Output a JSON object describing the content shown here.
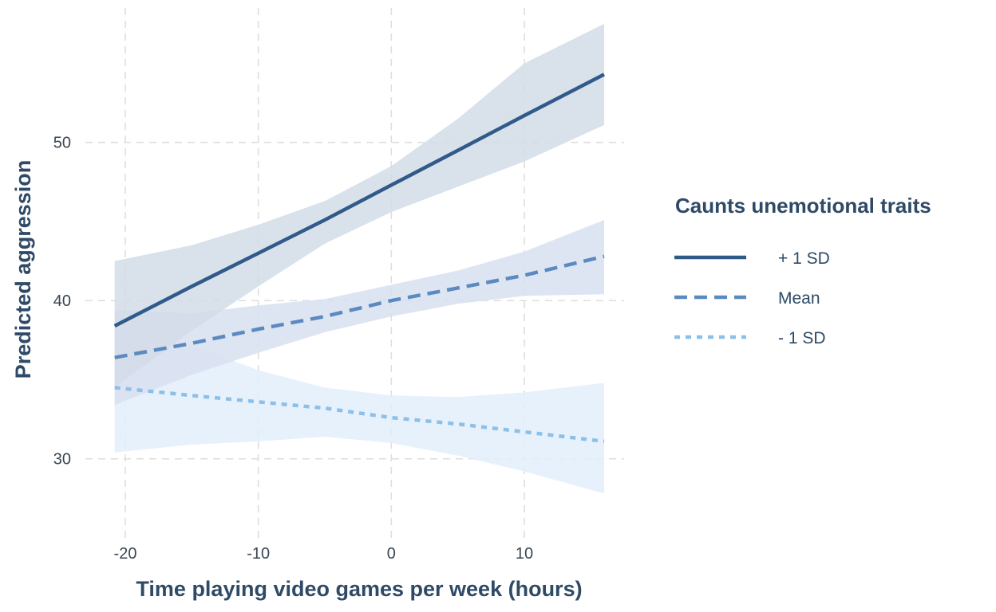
{
  "chart_data": {
    "type": "line",
    "xlabel": "Time playing video games per week (hours)",
    "ylabel": "Predicted aggression",
    "xlim": [
      -23,
      17.5
    ],
    "ylim": [
      25,
      58.5
    ],
    "xticks": [
      -20,
      -10,
      0,
      10
    ],
    "yticks": [
      30,
      40,
      50
    ],
    "xtick_labels": [
      "-20",
      "-10",
      "0",
      "10"
    ],
    "ytick_labels": [
      "30",
      "40",
      "50"
    ],
    "grid": true,
    "grid_style": "dashed",
    "legend": {
      "title": "Caunts unemotional traits",
      "placement": "right"
    },
    "series": [
      {
        "name": "+ 1 SD",
        "color": "#2f5a8a",
        "line_style": "solid",
        "band_color": "#d2dce7",
        "x": [
          -20.8,
          -15,
          -10,
          -5,
          0,
          5,
          10,
          16
        ],
        "y": [
          38.4,
          40.9,
          43.0,
          45.1,
          47.3,
          49.5,
          51.7,
          54.3
        ],
        "lower": [
          34.5,
          38.1,
          40.9,
          43.6,
          45.6,
          47.2,
          48.8,
          51.1
        ],
        "upper": [
          42.5,
          43.5,
          44.8,
          46.3,
          48.5,
          51.5,
          55.0,
          57.5
        ]
      },
      {
        "name": "Mean",
        "color": "#5b8ac0",
        "line_style": "dashed",
        "band_color": "#d8e1f0",
        "x": [
          -20.8,
          -15,
          -10,
          -5,
          0,
          5,
          10,
          16
        ],
        "y": [
          36.4,
          37.3,
          38.2,
          39.0,
          40.0,
          40.8,
          41.6,
          42.8
        ],
        "lower": [
          33.4,
          35.3,
          36.7,
          38.0,
          39.0,
          39.8,
          40.3,
          40.4
        ],
        "upper": [
          39.4,
          39.2,
          39.7,
          40.1,
          41.0,
          41.9,
          43.1,
          45.1
        ]
      },
      {
        "name": "- 1 SD",
        "color": "#8cc0e8",
        "line_style": "dotted",
        "band_color": "#e3eefa",
        "x": [
          -20.8,
          -15,
          -10,
          -5,
          0,
          5,
          10,
          16
        ],
        "y": [
          34.5,
          34.0,
          33.6,
          33.2,
          32.6,
          32.2,
          31.7,
          31.1
        ],
        "lower": [
          30.4,
          30.9,
          31.1,
          31.4,
          31.0,
          30.2,
          29.2,
          27.8
        ],
        "upper": [
          38.7,
          37.2,
          35.6,
          34.5,
          34.0,
          33.9,
          34.2,
          34.8
        ]
      }
    ]
  }
}
